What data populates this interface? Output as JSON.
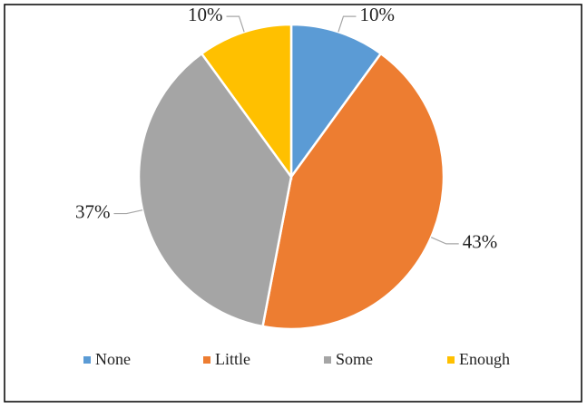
{
  "chart_data": {
    "type": "pie",
    "categories": [
      "None",
      "Little",
      "Some",
      "Enough"
    ],
    "values": [
      10,
      43,
      37,
      10
    ],
    "value_labels": [
      "10%",
      "43%",
      "37%",
      "10%"
    ],
    "colors": [
      "#5b9bd5",
      "#ed7d31",
      "#a5a5a5",
      "#ffc000"
    ],
    "legend": "bottom"
  }
}
